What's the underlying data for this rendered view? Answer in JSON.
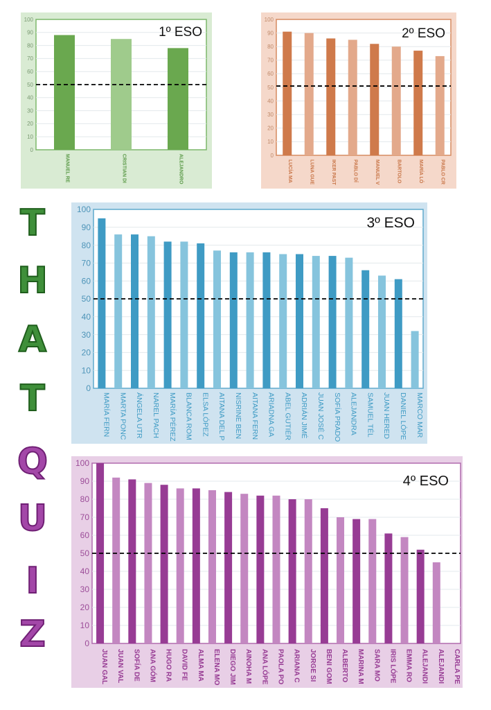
{
  "title_letters": [
    "T",
    "H",
    "A",
    "T",
    "Q",
    "U",
    "I",
    "Z"
  ],
  "colors": {
    "green_dark": "#6aa84f",
    "green_light": "#9fcb8c",
    "orange_dark": "#cf7a4b",
    "orange_light": "#e3a98b",
    "blue_dark": "#3f9bc4",
    "blue_light": "#86c4dd",
    "purple_dark": "#973c94",
    "purple_light": "#c387c1",
    "threshold_line": "#000000"
  },
  "chart_data": [
    {
      "type": "bar",
      "title": "1º ESO",
      "categories": [
        "MANUEL RE",
        "CRISTIAN DI",
        "ALEJANDRO"
      ],
      "values": [
        88,
        85,
        78
      ],
      "ylim": [
        0,
        100
      ],
      "yticks": [
        0,
        10,
        20,
        30,
        40,
        50,
        60,
        70,
        80,
        90,
        100
      ],
      "reference_line": 50,
      "grid": true,
      "bar_colors": [
        "green_dark",
        "green_light"
      ]
    },
    {
      "type": "bar",
      "title": "2º ESO",
      "categories": [
        "LUCÍA MA",
        "LUNA GUE",
        "IKER PAST",
        "PABLO DÍ",
        "MANUEL V",
        "BARTOLO",
        "MARÍA LÓ",
        "PABLO CR"
      ],
      "values": [
        91,
        90,
        86,
        85,
        82,
        80,
        77,
        73
      ],
      "ylim": [
        0,
        100
      ],
      "yticks": [
        0,
        10,
        20,
        30,
        40,
        50,
        60,
        70,
        80,
        90,
        100
      ],
      "reference_line": 51,
      "grid": true,
      "bar_colors": [
        "orange_dark",
        "orange_light"
      ]
    },
    {
      "type": "bar",
      "title": "3º ESO",
      "categories": [
        "MARÍA FERN",
        "MARTA PONC",
        "ÁNGELA UTR",
        "NAREL PACH",
        "MARÍA PÉREZ",
        "BLANCA ROM",
        "ELSA LÓPEZ",
        "AITANA DEL P",
        "NISRINE BEN",
        "AITANA FERN",
        "ARIADNA GA",
        "ABEL GUTIÉR",
        "ADRIÁN JIMÉ",
        "JUAN JOSÉ C",
        "SOFÍA PRADO",
        "ALEJANDRA",
        "SAMUEL TÉL",
        "JUAN HERED",
        "DANIEL LÓPE",
        "MARCO MAR"
      ],
      "values": [
        95,
        86,
        86,
        85,
        82,
        82,
        81,
        77,
        76,
        76,
        76,
        75,
        75,
        74,
        74,
        73,
        66,
        63,
        61,
        32
      ],
      "ylim": [
        0,
        100
      ],
      "yticks": [
        0,
        10,
        20,
        30,
        40,
        50,
        60,
        70,
        80,
        90,
        100
      ],
      "reference_line": 50,
      "grid": true,
      "bar_colors": [
        "blue_dark",
        "blue_light"
      ]
    },
    {
      "type": "bar",
      "title": "4º ESO",
      "categories": [
        "JUAN GAL",
        "JUAN VAL",
        "SOFÍA DE",
        "ANA GÓM",
        "HUGO RA",
        "DAVID FE",
        "ALMA MA",
        "ELENA MO",
        "DIEGO JIM",
        "AINOHA M",
        "ANA LÓPE",
        "PAOLA PO",
        "ARIANA C",
        "JORGE SI",
        "BENI GOM",
        "ALBERTO",
        "MARINA M",
        "SARA MO",
        "IRIS LÓPE",
        "EMMA RO",
        "ALEJANDI",
        "ALEJANDI",
        "CARLA PE"
      ],
      "values": [
        100,
        92,
        91,
        89,
        88,
        86,
        86,
        85,
        84,
        83,
        82,
        82,
        80,
        80,
        75,
        70,
        69,
        69,
        61,
        59,
        52,
        45,
        0
      ],
      "ylim": [
        0,
        100
      ],
      "yticks": [
        0,
        10,
        20,
        30,
        40,
        50,
        60,
        70,
        80,
        90,
        100
      ],
      "reference_line": 50,
      "grid": true,
      "bar_colors": [
        "purple_dark",
        "purple_light"
      ]
    }
  ]
}
